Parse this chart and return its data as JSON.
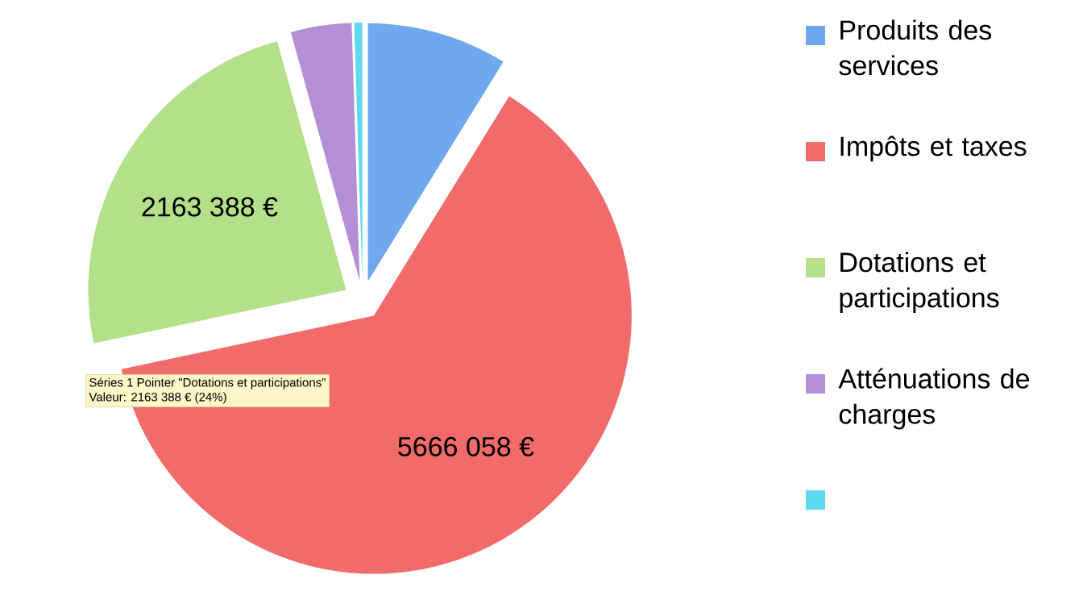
{
  "chart_data": {
    "type": "pie",
    "categories": [
      "Produits des services",
      "Impôts et taxes",
      "Dotations et participations",
      "Atténuations de charges",
      null
    ],
    "values": [
      793000,
      5666058,
      2163388,
      343000,
      45000
    ],
    "colors": [
      "#6fa8ec",
      "#f26b6b",
      "#b5e08a",
      "#b48fd6",
      "#5fd8f0"
    ],
    "value_labels": [
      null,
      "5666 058 €",
      "2163 388 €",
      null,
      null
    ],
    "legend": "right",
    "annotations": [
      "Séries 1 Pointer \"Dotations et participations\"",
      "Valeur: 2163 388 € (24%)"
    ]
  }
}
